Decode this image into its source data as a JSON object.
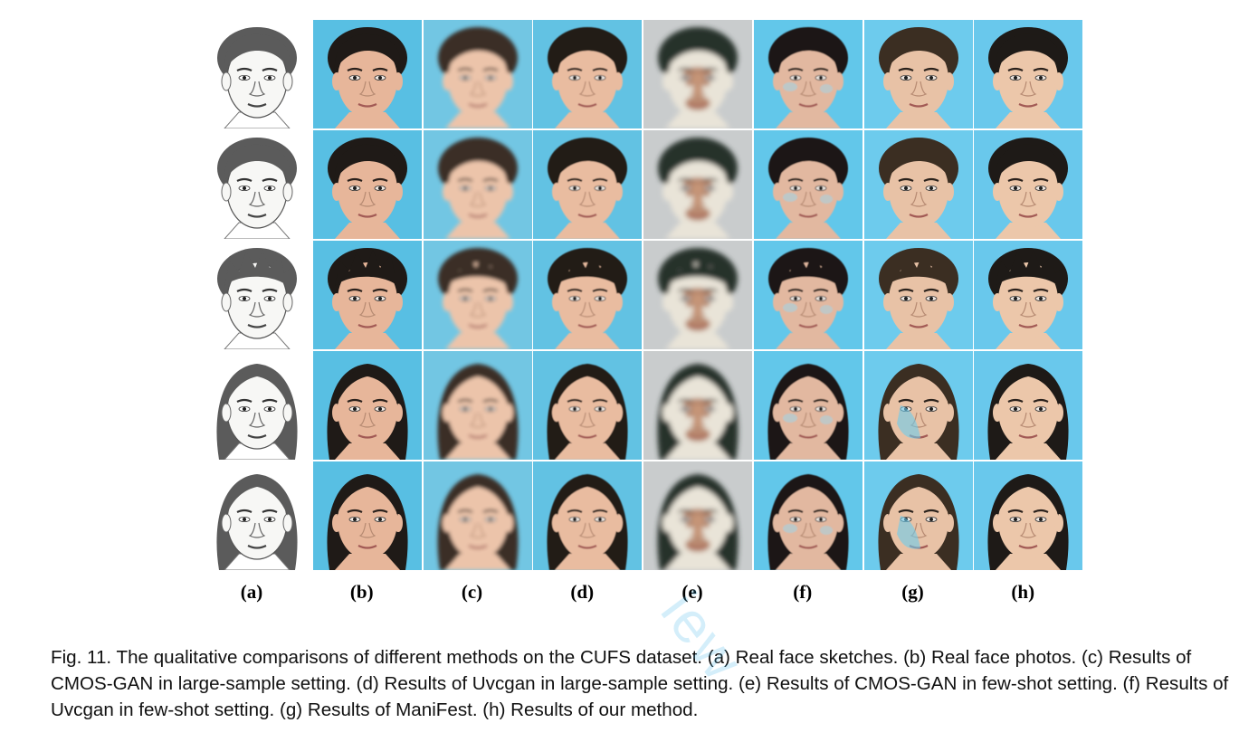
{
  "figure": {
    "column_labels": [
      "(a)",
      "(b)",
      "(c)",
      "(d)",
      "(e)",
      "(f)",
      "(g)",
      "(h)"
    ],
    "rows": 5,
    "columns": [
      {
        "kind": "sketch",
        "bg": "#ffffff",
        "skin": "#f7f7f5",
        "hair": "#2a2a2a",
        "blur": 0
      },
      {
        "kind": "photo",
        "bg": "#58bfe3",
        "skin": "#e7b69a",
        "hair": "#1f1a17",
        "blur": 0
      },
      {
        "kind": "photo",
        "bg": "#72c6e3",
        "skin": "#ecc4aa",
        "hair": "#3a2f28",
        "blur": 2
      },
      {
        "kind": "photo",
        "bg": "#62c2e3",
        "skin": "#e9bca0",
        "hair": "#221c18",
        "blur": 0.6
      },
      {
        "kind": "artifact",
        "bg": "#c9cccd",
        "skin": "#e9e4d8",
        "hair": "#27302c",
        "blur": 3
      },
      {
        "kind": "photo",
        "bg": "#62c7ea",
        "skin": "#e2b8a0",
        "hair": "#1c1917",
        "blur": 0.4
      },
      {
        "kind": "photo",
        "bg": "#6dcbed",
        "skin": "#e8c2a6",
        "hair": "#3b2e24",
        "blur": 0.3
      },
      {
        "kind": "photo",
        "bg": "#69c8ec",
        "skin": "#ecc7aa",
        "hair": "#1e1a17",
        "blur": 0
      }
    ],
    "row_hair_styles": [
      "short",
      "short",
      "spiky",
      "long",
      "long"
    ]
  },
  "caption": "Fig. 11.  The qualitative comparisons of different methods on the CUFS dataset. (a) Real face sketches. (b) Real face photos. (c) Results of CMOS-GAN in large-sample setting. (d) Results of Uvcgan in large-sample setting. (e) Results of CMOS-GAN in few-shot setting. (f) Results of Uvcgan in few-shot setting. (g) Results of ManiFest. (h) Results of our method.",
  "watermark": "iew"
}
